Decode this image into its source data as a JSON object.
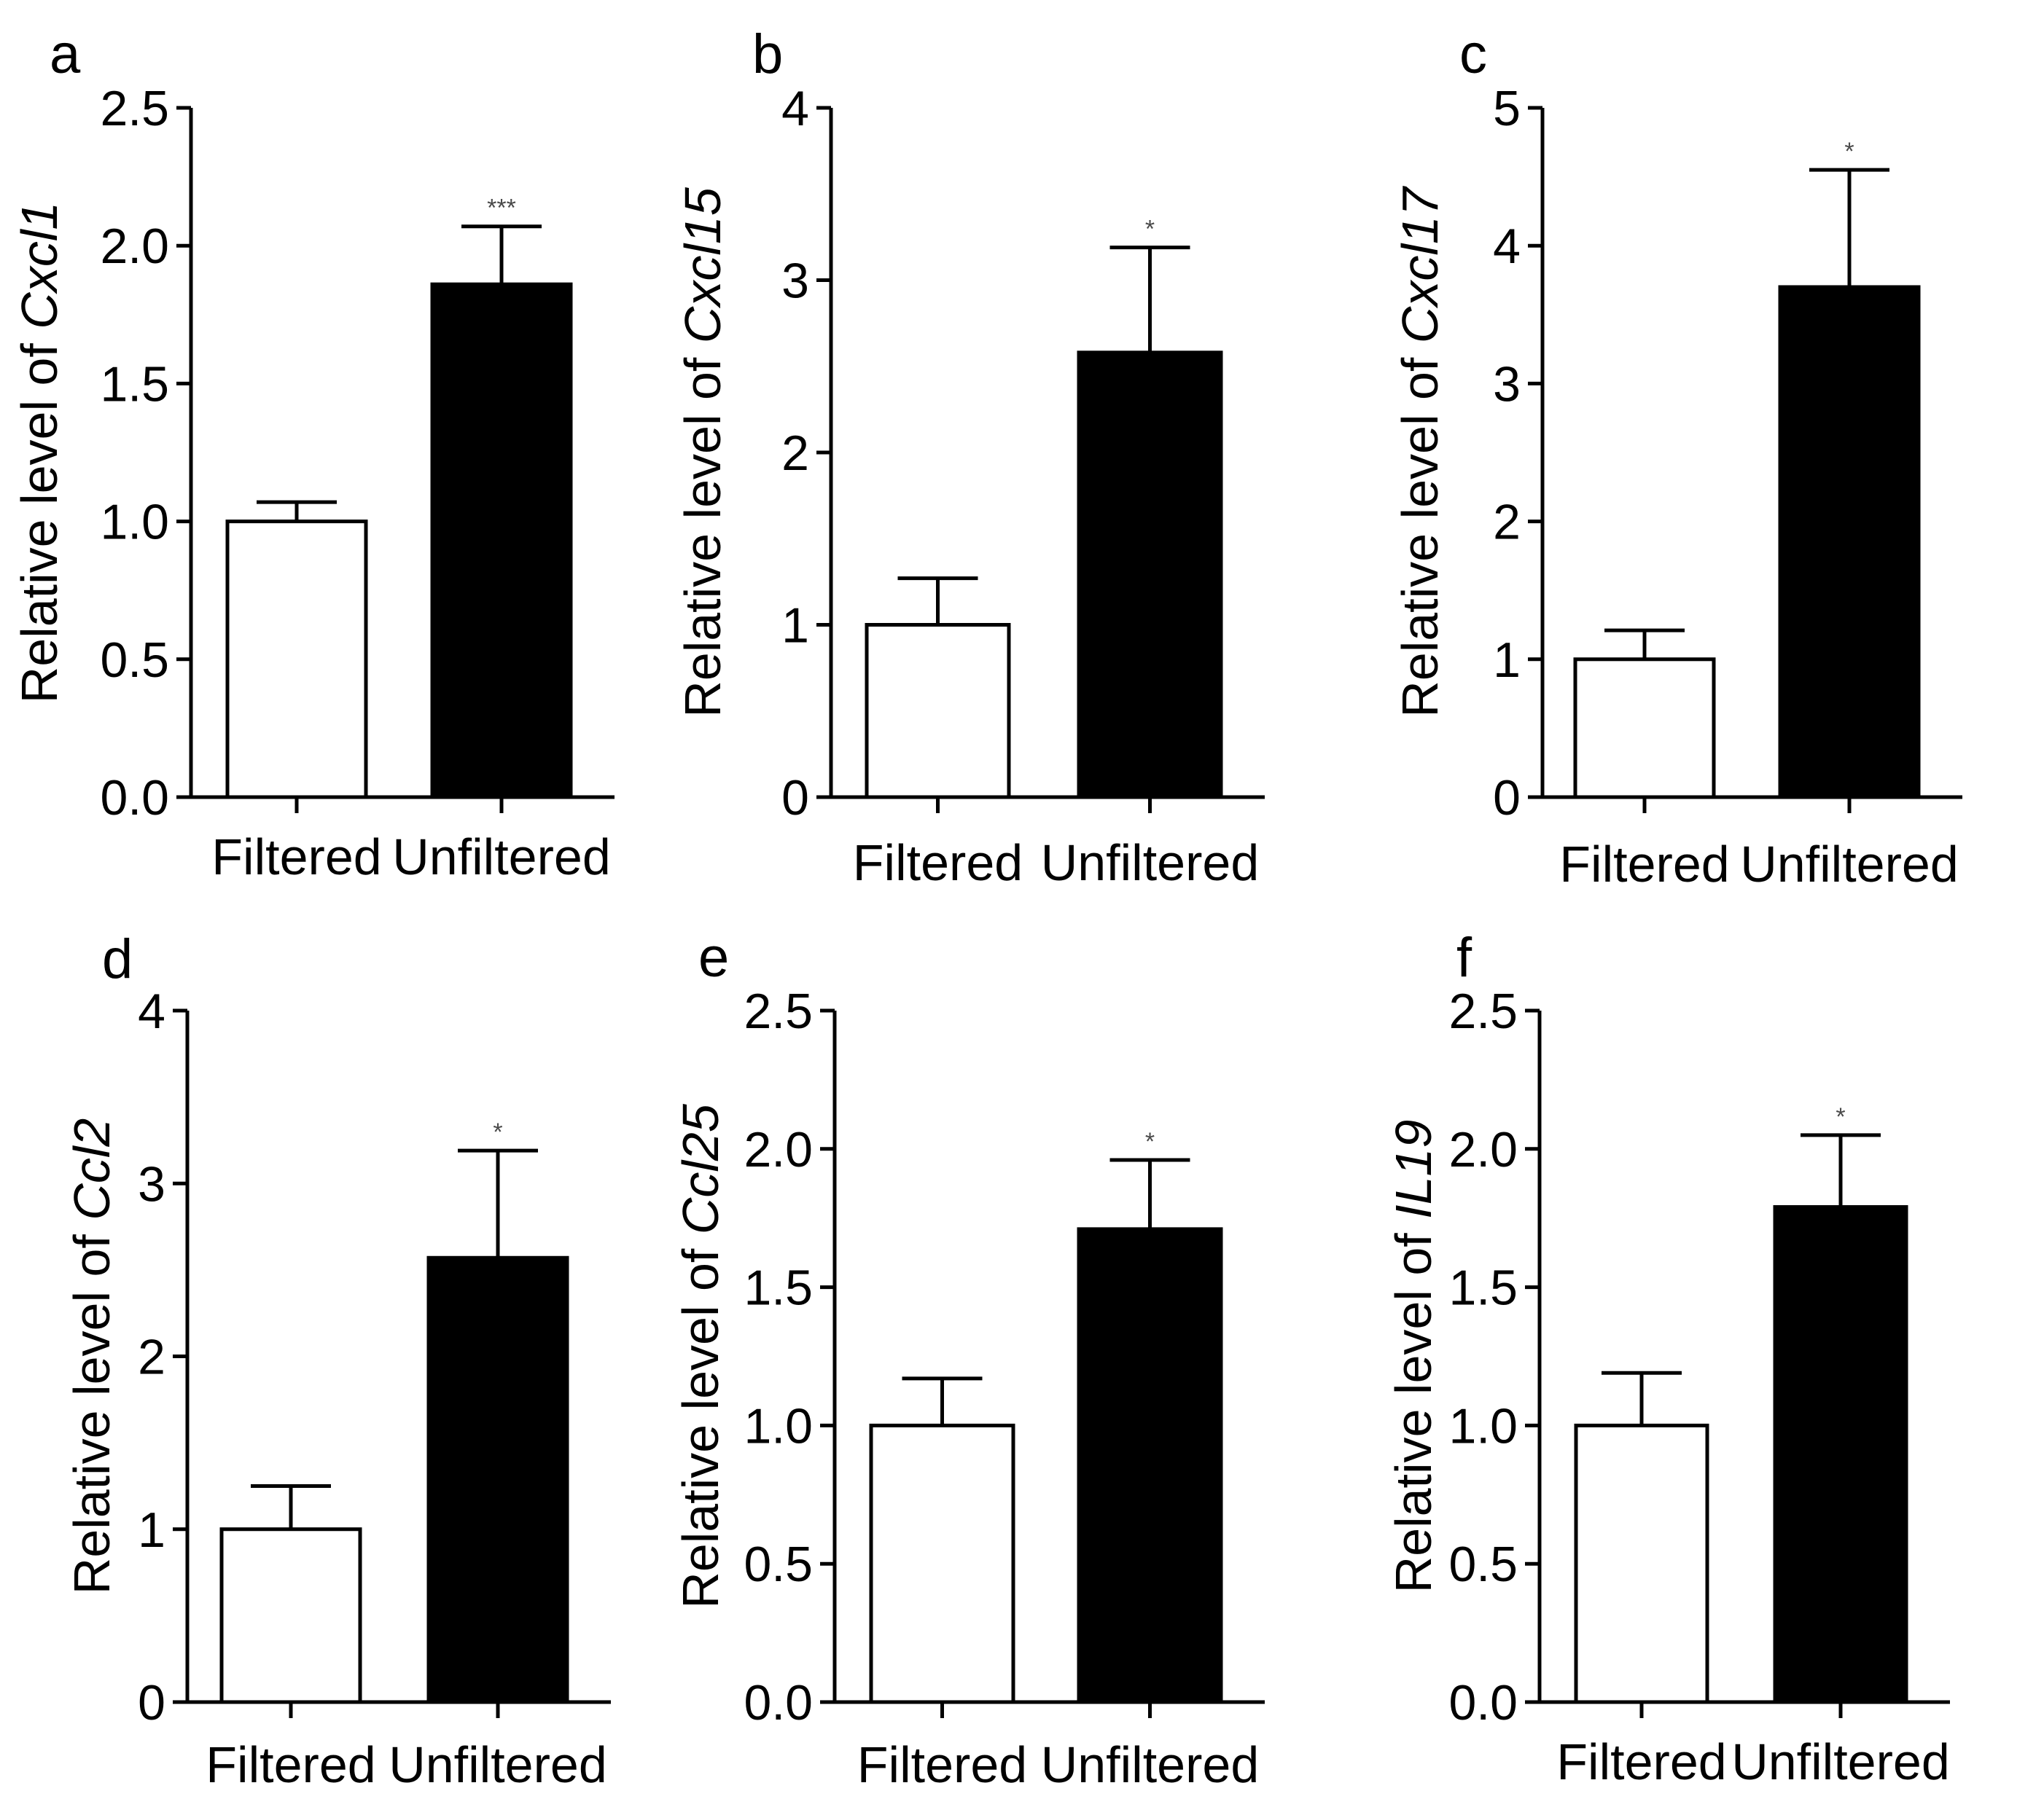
{
  "chart_data": [
    {
      "panel": "a",
      "type": "bar",
      "categories": [
        "Filtered",
        "Unfiltered"
      ],
      "values": [
        1.0,
        1.86
      ],
      "errors": [
        0.07,
        0.21
      ],
      "bar_colors": [
        "#ffffff",
        "#000000"
      ],
      "significance": [
        "",
        "***"
      ],
      "ylabel_prefix": "Relative level of ",
      "ylabel_gene": "Cxcl1",
      "ylim": [
        0,
        2.5
      ],
      "yticks": [
        0,
        0.5,
        1,
        1.5,
        2,
        2.5
      ],
      "ytick_labels": [
        "0.0",
        "0.5",
        "1.0",
        "1.5",
        "2.0",
        "2.5"
      ]
    },
    {
      "panel": "b",
      "type": "bar",
      "categories": [
        "Filtered",
        "Unfiltered"
      ],
      "values": [
        1.0,
        2.58
      ],
      "errors": [
        0.27,
        0.61
      ],
      "bar_colors": [
        "#ffffff",
        "#000000"
      ],
      "significance": [
        "",
        "*"
      ],
      "ylabel_prefix": "Relative level of ",
      "ylabel_gene": "Cxcl15",
      "ylim": [
        0,
        4
      ],
      "yticks": [
        0,
        1,
        2,
        3,
        4
      ],
      "ytick_labels": [
        "0",
        "1",
        "2",
        "3",
        "4"
      ]
    },
    {
      "panel": "c",
      "type": "bar",
      "categories": [
        "Filtered",
        "Unfiltered"
      ],
      "values": [
        1.0,
        3.7
      ],
      "errors": [
        0.21,
        0.85
      ],
      "bar_colors": [
        "#ffffff",
        "#000000"
      ],
      "significance": [
        "",
        "*"
      ],
      "ylabel_prefix": "Relative level of ",
      "ylabel_gene": "Cxcl17",
      "ylim": [
        0,
        5
      ],
      "yticks": [
        0,
        1,
        2,
        3,
        4,
        5
      ],
      "ytick_labels": [
        "0",
        "1",
        "2",
        "3",
        "4",
        "5"
      ]
    },
    {
      "panel": "d",
      "type": "bar",
      "categories": [
        "Filtered",
        "Unfiltered"
      ],
      "values": [
        1.0,
        2.57
      ],
      "errors": [
        0.25,
        0.62
      ],
      "bar_colors": [
        "#ffffff",
        "#000000"
      ],
      "significance": [
        "",
        "*"
      ],
      "ylabel_prefix": "Relative level of ",
      "ylabel_gene": "Ccl2",
      "ylim": [
        0,
        4
      ],
      "yticks": [
        0,
        1,
        2,
        3,
        4
      ],
      "ytick_labels": [
        "0",
        "1",
        "2",
        "3",
        "4"
      ]
    },
    {
      "panel": "e",
      "type": "bar",
      "categories": [
        "Filtered",
        "Unfiltered"
      ],
      "values": [
        1.0,
        1.71
      ],
      "errors": [
        0.17,
        0.25
      ],
      "bar_colors": [
        "#ffffff",
        "#000000"
      ],
      "significance": [
        "",
        "*"
      ],
      "ylabel_prefix": "Relative level of ",
      "ylabel_gene": "Ccl25",
      "ylim": [
        0,
        2.5
      ],
      "yticks": [
        0,
        0.5,
        1,
        1.5,
        2,
        2.5
      ],
      "ytick_labels": [
        "0.0",
        "0.5",
        "1.0",
        "1.5",
        "2.0",
        "2.5"
      ]
    },
    {
      "panel": "f",
      "type": "bar",
      "categories": [
        "Filtered",
        "Unfiltered"
      ],
      "values": [
        1.0,
        1.79
      ],
      "errors": [
        0.19,
        0.26
      ],
      "bar_colors": [
        "#ffffff",
        "#000000"
      ],
      "significance": [
        "",
        "*"
      ],
      "ylabel_prefix": "Relative level of ",
      "ylabel_gene": "IL19",
      "ylim": [
        0,
        2.5
      ],
      "yticks": [
        0,
        0.5,
        1,
        1.5,
        2,
        2.5
      ],
      "ytick_labels": [
        "0.0",
        "0.5",
        "1.0",
        "1.5",
        "2.0",
        "2.5"
      ]
    }
  ]
}
